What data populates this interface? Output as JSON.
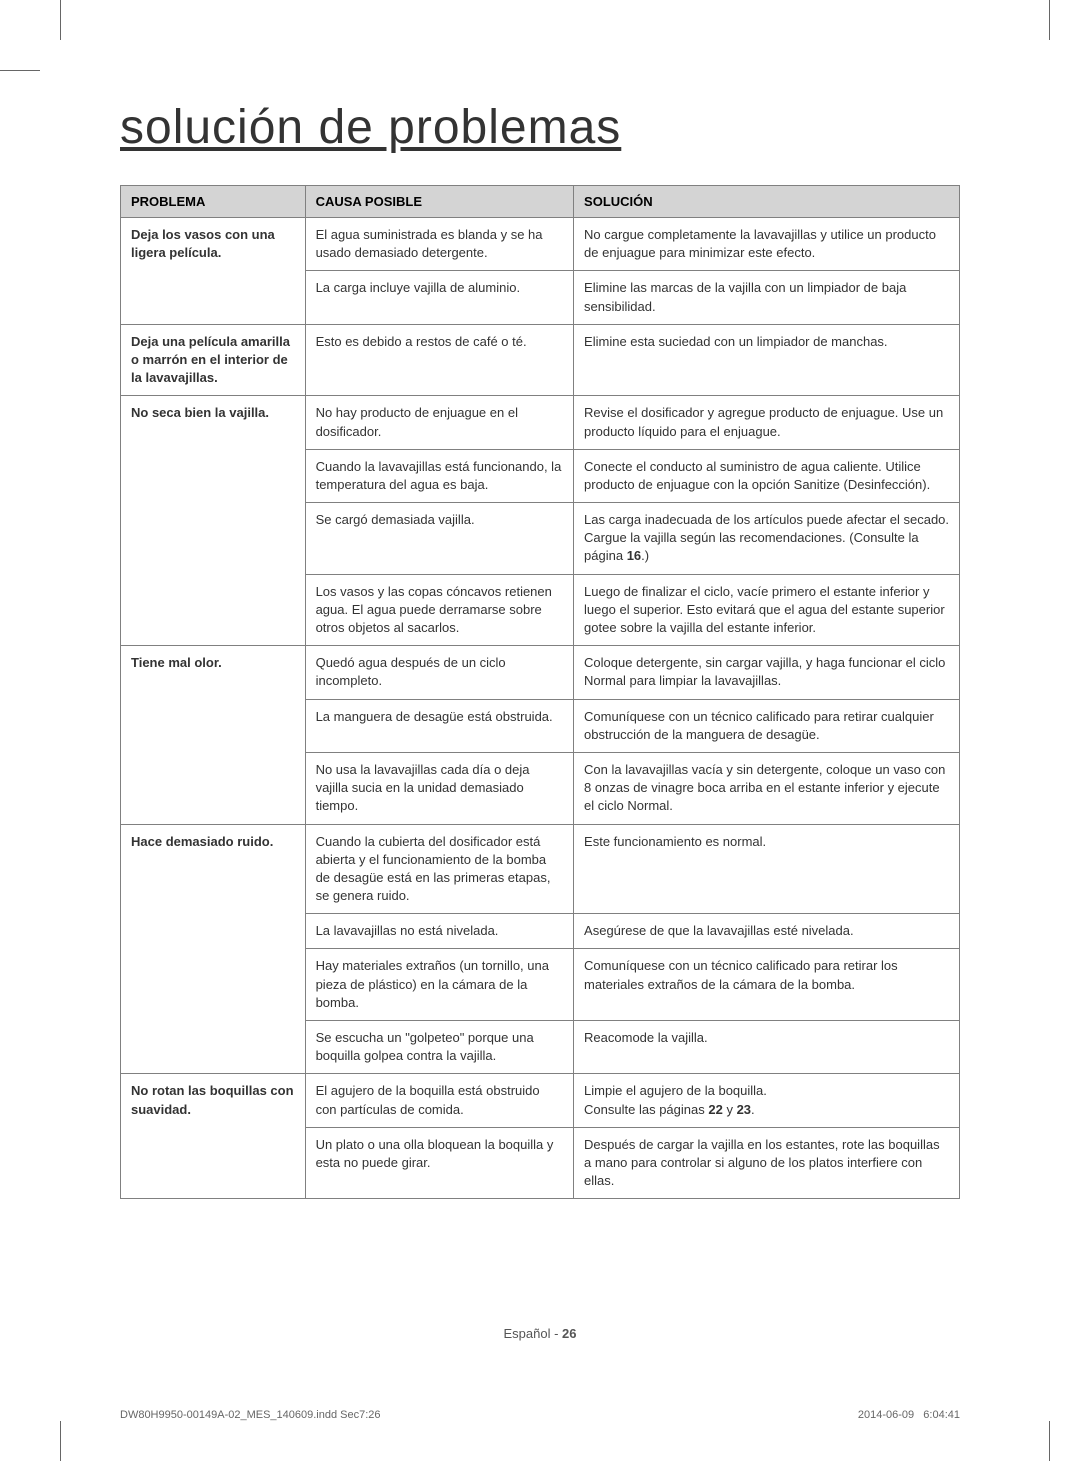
{
  "title": "solución de problemas",
  "headers": {
    "problem": "PROBLEMA",
    "cause": "CAUSA POSIBLE",
    "solution": "SOLUCIÓN"
  },
  "rows": [
    {
      "problem": "Deja los vasos con una ligera película.",
      "problem_rowspan": 2,
      "cause": "El agua suministrada es blanda y se ha usado demasiado detergente.",
      "solution": "No cargue completamente la lavavajillas y utilice un producto de enjuague para minimizar este efecto."
    },
    {
      "cause": "La carga incluye vajilla de aluminio.",
      "solution": "Elimine las marcas de la vajilla con un limpiador de baja sensibilidad."
    },
    {
      "problem": "Deja una película amarilla o marrón en el interior de la lavavajillas.",
      "problem_rowspan": 1,
      "cause": "Esto es debido a restos de café o té.",
      "solution": "Elimine esta suciedad con un limpiador de manchas."
    },
    {
      "problem": "No seca bien la vajilla.",
      "problem_rowspan": 4,
      "cause": "No hay producto de enjuague en el dosificador.",
      "solution": "Revise el dosificador y agregue producto de enjuague. Use un producto líquido para el enjuague."
    },
    {
      "cause": "Cuando la lavavajillas está funcionando, la temperatura del agua es baja.",
      "solution": "Conecte el conducto al suministro de agua caliente. Utilice producto de enjuague con la opción Sanitize (Desinfección)."
    },
    {
      "cause": "Se cargó demasiada vajilla.",
      "solution": "Las carga inadecuada de los artículos puede afectar el secado.\nCargue la vajilla según las recomendaciones. (Consulte la página 16.)",
      "bold_refs": [
        "16"
      ]
    },
    {
      "cause": "Los vasos y las copas cóncavos retienen agua. El agua puede derramarse sobre otros objetos al sacarlos.",
      "solution": "Luego de finalizar el ciclo, vacíe primero el estante inferior y luego el superior. Esto evitará que el agua del estante superior gotee sobre la vajilla del estante inferior."
    },
    {
      "problem": "Tiene mal olor.",
      "problem_rowspan": 3,
      "cause": "Quedó agua después de un ciclo incompleto.",
      "solution": "Coloque detergente, sin cargar vajilla, y haga funcionar el ciclo Normal para limpiar la lavavajillas."
    },
    {
      "cause": "La manguera de desagüe está obstruida.",
      "solution": "Comuníquese con un técnico calificado para retirar cualquier obstrucción de la manguera de desagüe."
    },
    {
      "cause": "No usa la lavavajillas cada día o deja vajilla sucia en la unidad demasiado tiempo.",
      "solution": "Con la lavavajillas vacía y sin detergente, coloque un vaso con 8 onzas de vinagre boca arriba en el estante inferior y ejecute el ciclo Normal."
    },
    {
      "problem": "Hace demasiado ruido.",
      "problem_rowspan": 4,
      "cause": "Cuando la cubierta del dosificador está abierta y el funcionamiento de la bomba de desagüe está en las primeras etapas, se genera ruido.",
      "solution": "Este funcionamiento es normal."
    },
    {
      "cause": "La lavavajillas no está nivelada.",
      "solution": "Asegúrese de que la lavavajillas esté nivelada."
    },
    {
      "cause": "Hay materiales extraños (un tornillo, una pieza de plástico) en la cámara de la bomba.",
      "solution": "Comuníquese con un técnico calificado para retirar los materiales extraños de la cámara de la bomba."
    },
    {
      "cause": "Se escucha un \"golpeteo\" porque una boquilla golpea contra la vajilla.",
      "solution": "Reacomode la vajilla."
    },
    {
      "problem": "No rotan las boquillas con suavidad.",
      "problem_rowspan": 2,
      "cause": "El agujero de la boquilla está obstruido con partículas de comida.",
      "solution": "Limpie el agujero de la boquilla.\nConsulte las páginas 22 y 23.",
      "bold_refs": [
        "22",
        "23"
      ]
    },
    {
      "cause": "Un plato o una olla bloquean la boquilla y esta no puede girar.",
      "solution": "Después de cargar la vajilla en los estantes, rote las boquillas a mano para controlar si alguno de los platos interfiere con ellas."
    }
  ],
  "footer": {
    "language": "Español",
    "separator": " - ",
    "page_num": "26"
  },
  "doc_meta": {
    "file": "DW80H9950-00149A-02_MES_140609.indd   Sec7:26",
    "date": "2014-06-09",
    "time": "6:04:41"
  },
  "colors": {
    "header_bg": "#d4d4d4",
    "border": "#808080",
    "text": "#333333"
  }
}
